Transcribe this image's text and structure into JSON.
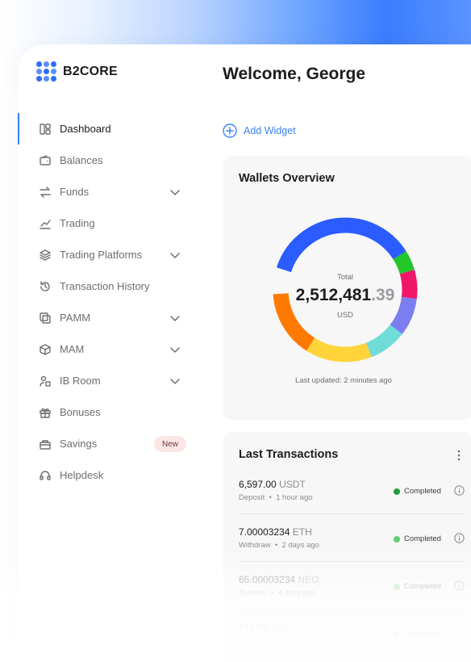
{
  "brand": {
    "name": "B2CORE",
    "dot_colors": [
      "#2f6bff",
      "#5c8dff",
      "#2f6bff",
      "#5c8dff",
      "#2f6bff",
      "#5c8dff",
      "#2f6bff",
      "#5c8dff",
      "#2f6bff"
    ]
  },
  "sidebar": {
    "items": [
      {
        "label": "Dashboard",
        "icon": "dashboard-icon",
        "active": true,
        "chevron": false
      },
      {
        "label": "Balances",
        "icon": "wallet-icon",
        "active": false,
        "chevron": false
      },
      {
        "label": "Funds",
        "icon": "transfer-arrows-icon",
        "active": false,
        "chevron": true
      },
      {
        "label": "Trading",
        "icon": "trend-line-icon",
        "active": false,
        "chevron": false
      },
      {
        "label": "Trading Platforms",
        "icon": "layers-icon",
        "active": false,
        "chevron": true
      },
      {
        "label": "Transaction History",
        "icon": "history-icon",
        "active": false,
        "chevron": false
      },
      {
        "label": "PAMM",
        "icon": "pamm-icon",
        "active": false,
        "chevron": true
      },
      {
        "label": "MAM",
        "icon": "cube-icon",
        "active": false,
        "chevron": true
      },
      {
        "label": "IB Room",
        "icon": "ib-room-icon",
        "active": false,
        "chevron": true
      },
      {
        "label": "Bonuses",
        "icon": "gift-icon",
        "active": false,
        "chevron": false
      },
      {
        "label": "Savings",
        "icon": "savings-icon",
        "active": false,
        "chevron": false,
        "badge": "New"
      },
      {
        "label": "Helpdesk",
        "icon": "headset-icon",
        "active": false,
        "chevron": false
      }
    ]
  },
  "header": {
    "title": "Welcome, George"
  },
  "add_widget": {
    "label": "Add Widget",
    "icon": "plus-circle-icon"
  },
  "wallets": {
    "title": "Wallets Overview",
    "total_label": "Total",
    "amount_main": "2,512,481",
    "amount_decimal": ".39",
    "currency": "USD",
    "updated": "Last updated: 2 minutes ago",
    "segments": [
      {
        "color": "#2a5cff",
        "fraction": 0.36
      },
      {
        "color": "#22c52a",
        "fraction": 0.045
      },
      {
        "color": "#f0176a",
        "fraction": 0.065
      },
      {
        "color": "#7b7ef0",
        "fraction": 0.085
      },
      {
        "color": "#6fdcd8",
        "fraction": 0.085
      },
      {
        "color": "#ffd43b",
        "fraction": 0.15
      },
      {
        "color": "#ff7a00",
        "fraction": 0.15
      }
    ]
  },
  "transactions": {
    "title": "Last Transactions",
    "rows": [
      {
        "amount": "6,597.00",
        "currency": "USDT",
        "type": "Deposit",
        "time": "1 hour ago",
        "status": "Completed",
        "dot": "#1f9d3a",
        "opacity": 1
      },
      {
        "amount": "7.00003234",
        "currency": "ETH",
        "type": "Withdraw",
        "time": "2 days ago",
        "status": "Completed",
        "dot": "#5fcf6e",
        "opacity": 1
      },
      {
        "amount": "65.00003234",
        "currency": "NEO",
        "type": "Transfer",
        "time": "4 days ago",
        "status": "Completed",
        "dot": "#5fcf6e",
        "opacity": 0.45
      },
      {
        "amount": "672.00",
        "currency": "TRX",
        "type": "Exchange",
        "time": "5 days ago",
        "status": "Completed",
        "dot": "#5fcf6e",
        "opacity": 0.25
      }
    ]
  }
}
